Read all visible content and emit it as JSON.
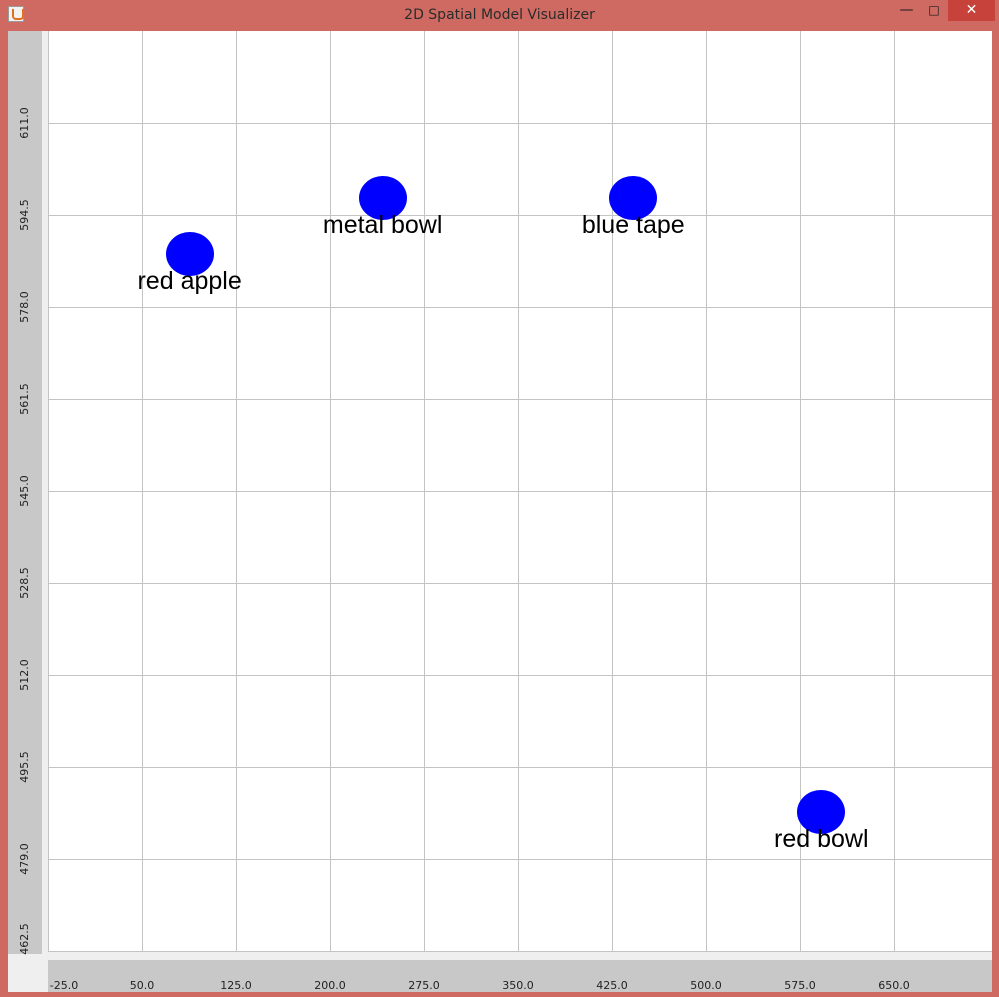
{
  "window": {
    "title": "2D Spatial Model Visualizer",
    "icon": "java-cup-icon",
    "controls": {
      "minimize": "—",
      "maximize": "□",
      "close": "✕"
    },
    "frame_color": "#cf6a62"
  },
  "chart_data": {
    "type": "scatter",
    "title": "",
    "xlabel": "",
    "ylabel": "",
    "xlim": [
      -25,
      700
    ],
    "ylim": [
      462.5,
      627.5
    ],
    "x_ticks": [
      "-25.0",
      "50.0",
      "125.0",
      "200.0",
      "275.0",
      "350.0",
      "425.0",
      "500.0",
      "575.0",
      "650.0"
    ],
    "y_ticks": [
      "462.5",
      "479.0",
      "495.5",
      "512.0",
      "528.5",
      "545.0",
      "561.5",
      "578.0",
      "594.5",
      "611.0"
    ],
    "grid": true,
    "marker_color": "#0000ff",
    "points": [
      {
        "label": "red apple",
        "x": 88,
        "y": 587.5
      },
      {
        "label": "metal bowl",
        "x": 242,
        "y": 597.5
      },
      {
        "label": "blue tape",
        "x": 442,
        "y": 597.5
      },
      {
        "label": "red bowl",
        "x": 592,
        "y": 487.5
      }
    ]
  }
}
